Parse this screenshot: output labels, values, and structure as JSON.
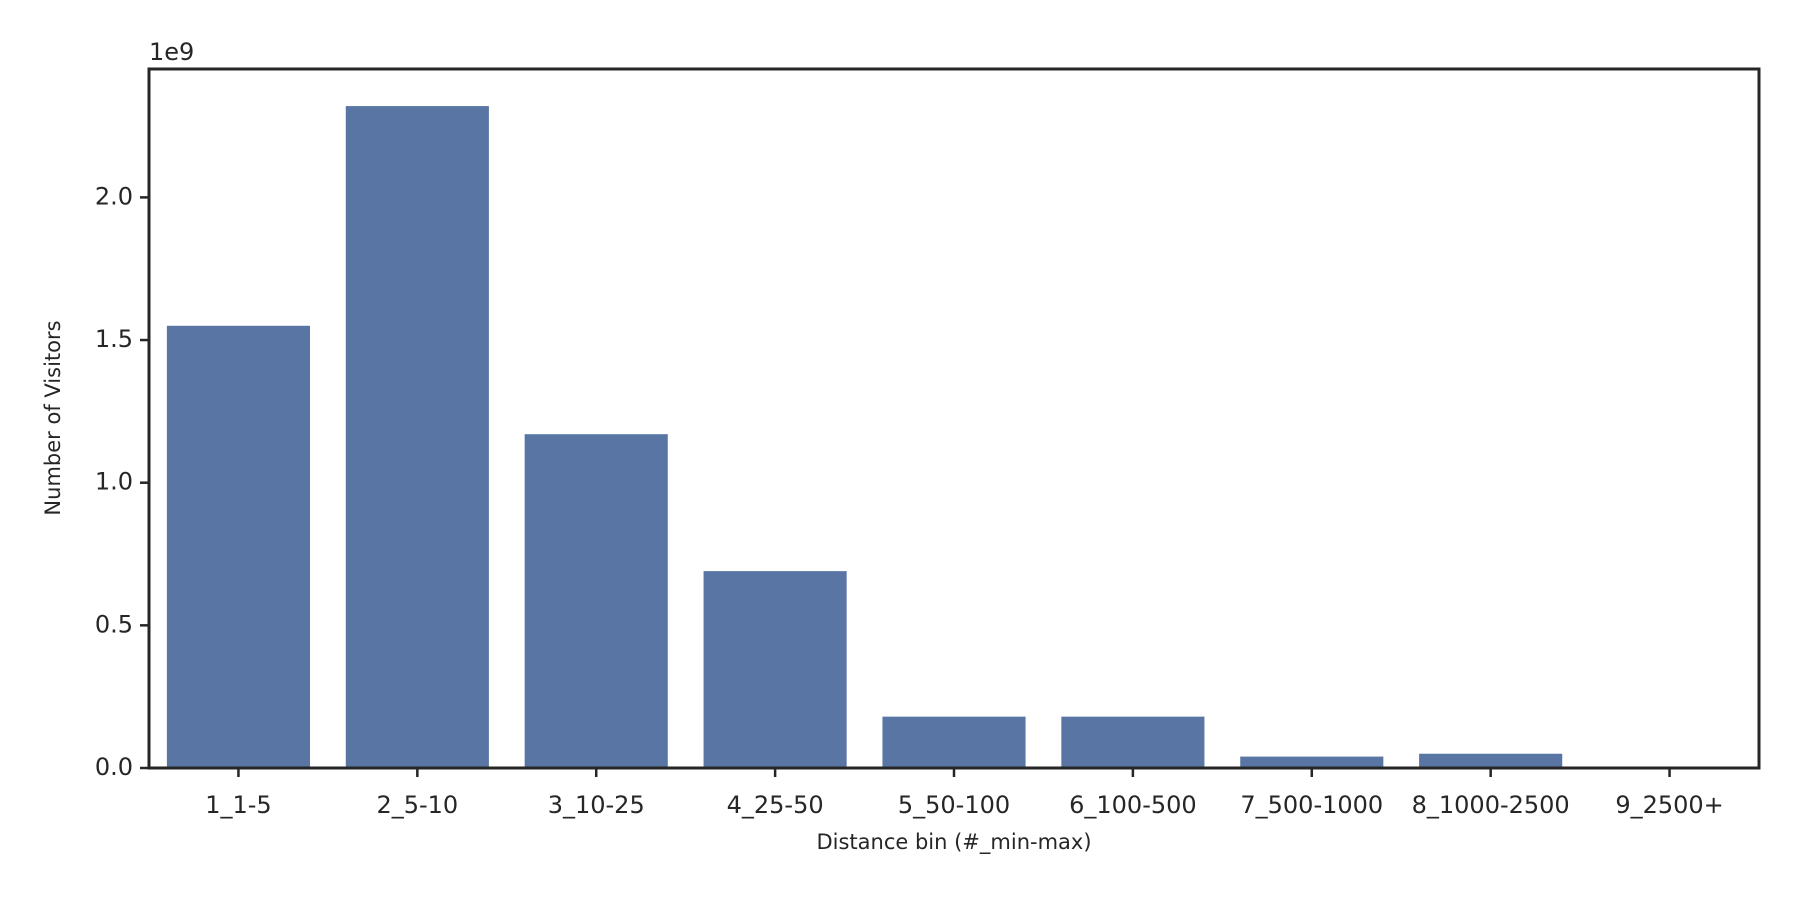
{
  "chart_data": {
    "type": "bar",
    "x_label": "Distance bin (#_min-max)",
    "y_label": "Number of Visitors",
    "y_offset_label": "1e9",
    "categories": [
      "1_1-5",
      "2_5-10",
      "3_10-25",
      "4_25-50",
      "5_50-100",
      "6_100-500",
      "7_500-1000",
      "8_1000-2500",
      "9_2500+"
    ],
    "values": [
      1.55,
      2.32,
      1.17,
      0.69,
      0.18,
      0.18,
      0.04,
      0.05,
      0
    ],
    "color": "#5875a4",
    "ylim": [
      0,
      2.45
    ],
    "yticks": [
      {
        "value": 0,
        "label": "0.0"
      },
      0.5,
      {
        "value": 1,
        "label": "1.0"
      },
      1.5,
      {
        "value": 2,
        "label": "2.0"
      }
    ]
  }
}
